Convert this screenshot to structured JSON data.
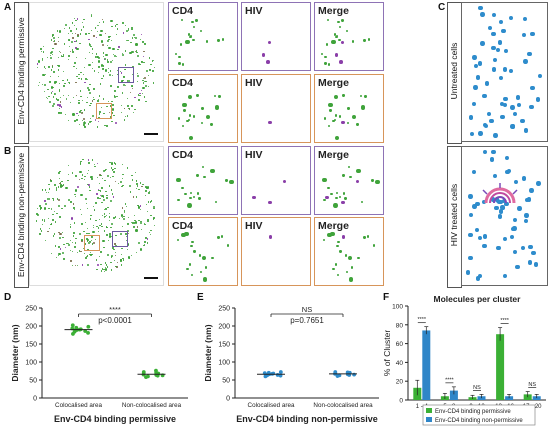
{
  "panel_letters": {
    "a": "A",
    "b": "B",
    "c": "C",
    "d": "D",
    "e": "E",
    "f": "F"
  },
  "row_titles": {
    "a": "Env-CD4 binding permissive",
    "b": "Env-CD4 binding non-permissive"
  },
  "tile_labels": {
    "cd4": "CD4",
    "hiv": "HIV",
    "merge": "Merge"
  },
  "panel_c_titles": {
    "top": "Untreated cells",
    "bottom": "HIV treated cells"
  },
  "colors": {
    "green": "#3fa33a",
    "purple": "#8a3ea8",
    "blue": "#2e8ccc",
    "bar_green": "#3bb035",
    "bar_blue": "#2f86c8",
    "purple_box": "#8e73b5",
    "orange_box": "#d7955a"
  },
  "chart_data": [
    {
      "id": "D",
      "type": "scatter",
      "ylabel": "Diameter (nm)",
      "xlabel": "Env-CD4 binding permissive",
      "categories": [
        "Colocalised area",
        "Non-colocalised area"
      ],
      "ylim": [
        0,
        250
      ],
      "yticks": [
        0,
        50,
        100,
        150,
        200,
        250
      ],
      "annotation": {
        "stars": "****",
        "p": "p<0.0001"
      },
      "series": [
        {
          "values": [
            178,
            181,
            184,
            186,
            188,
            189,
            190,
            191,
            193,
            195,
            198,
            202
          ]
        },
        {
          "values": [
            58,
            60,
            62,
            63,
            64,
            65,
            66,
            67,
            68,
            70,
            72,
            76
          ]
        }
      ],
      "means": [
        190,
        66
      ]
    },
    {
      "id": "E",
      "type": "scatter",
      "ylabel": "Diameter (nm)",
      "xlabel": "Env-CD4 binding non-permissive",
      "categories": [
        "Colocalised area",
        "Non-colocalised area"
      ],
      "ylim": [
        0,
        250
      ],
      "yticks": [
        0,
        50,
        100,
        150,
        200,
        250
      ],
      "annotation": {
        "stars": "NS",
        "p": "p=0.7651"
      },
      "series": [
        {
          "values": [
            60,
            62,
            63,
            64,
            65,
            66,
            67,
            68,
            69,
            70,
            72
          ]
        },
        {
          "values": [
            61,
            63,
            64,
            65,
            66,
            67,
            68,
            69,
            70,
            71,
            72
          ]
        }
      ],
      "means": [
        66,
        67
      ]
    },
    {
      "id": "F",
      "type": "bar",
      "title": "Molecules per cluster",
      "ylabel": "% of Cluster",
      "categories": [
        "1 - 4",
        "5 - 8",
        "9 - 12",
        "13 - 16",
        "17 - 20"
      ],
      "ylim": [
        0,
        100
      ],
      "yticks": [
        0,
        20,
        40,
        60,
        80,
        100
      ],
      "series": [
        {
          "name": "Env-CD4 binding permissive",
          "values": [
            13,
            4,
            3,
            70,
            6
          ],
          "errors": [
            8,
            3,
            2,
            7,
            3
          ]
        },
        {
          "name": "Env-CD4 binding non-permissive",
          "values": [
            74,
            10,
            4,
            4,
            4
          ],
          "errors": [
            4,
            4,
            2,
            2,
            2
          ]
        }
      ],
      "significance": [
        "****",
        "****",
        "NS",
        "****",
        "NS"
      ]
    }
  ]
}
